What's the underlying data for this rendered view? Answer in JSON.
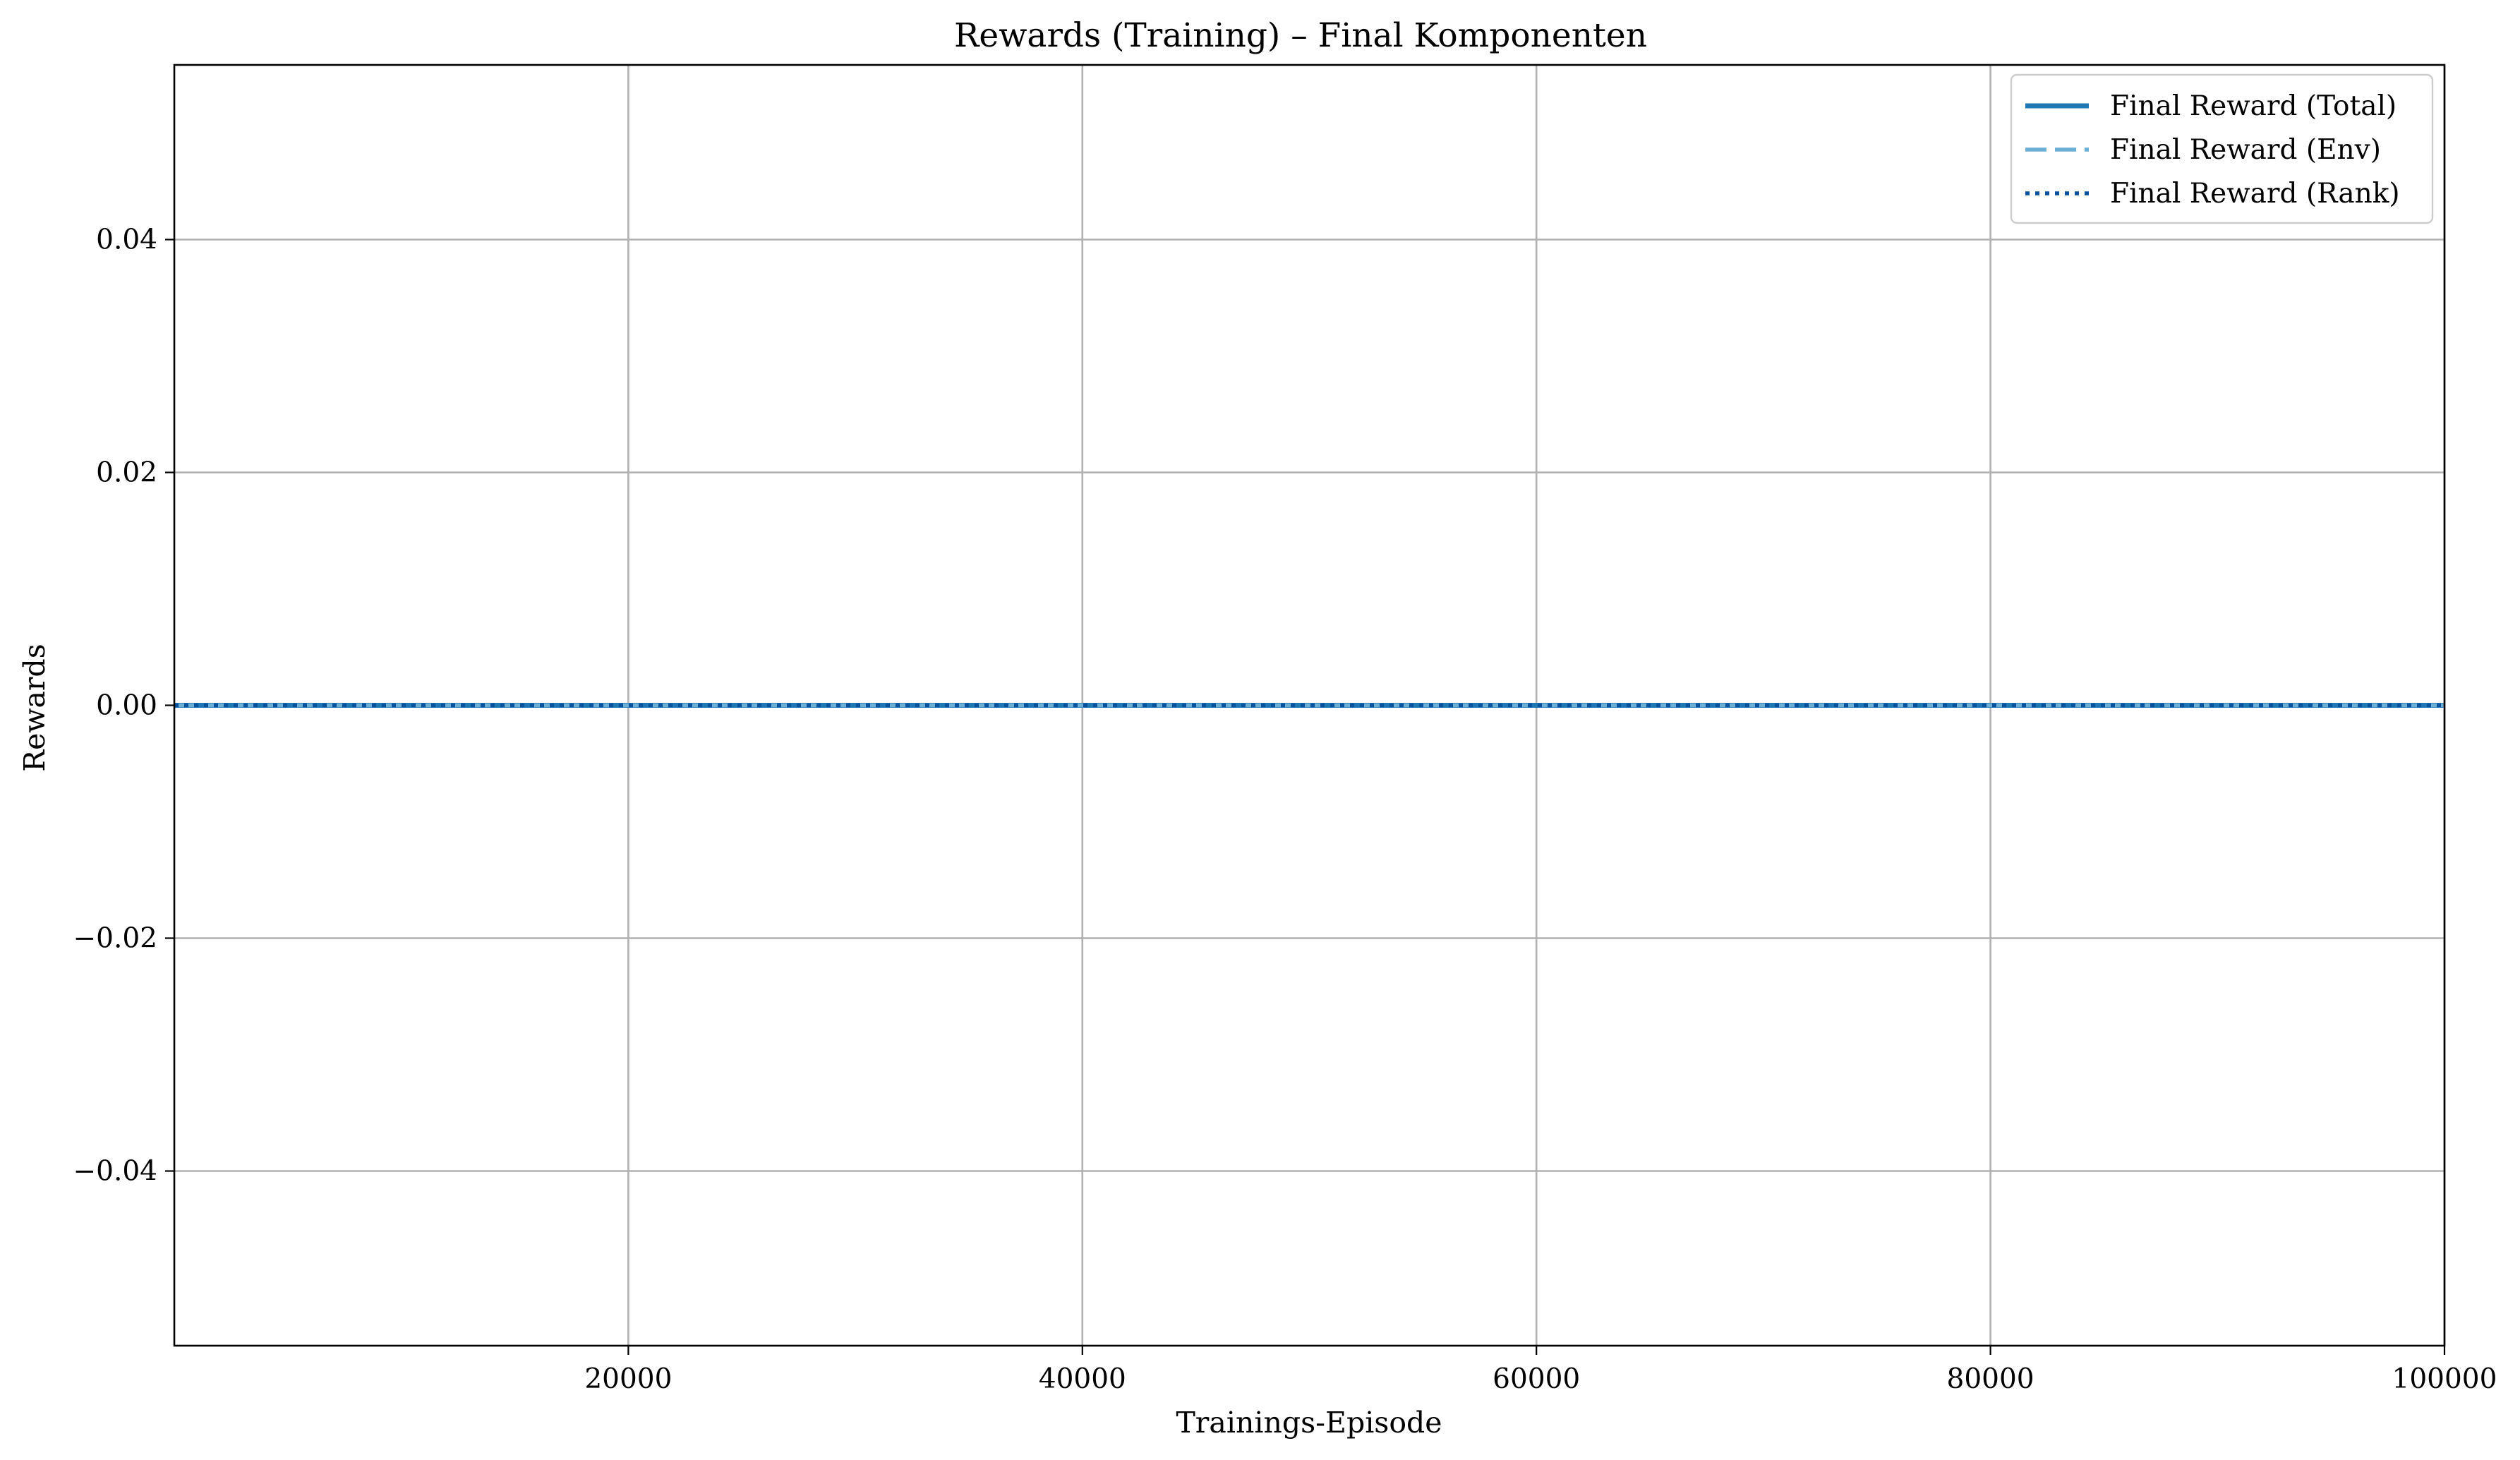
{
  "chart_data": {
    "type": "line",
    "title": "Rewards (Training) – Final Komponenten",
    "xlabel": "Trainings-Episode",
    "ylabel": "Rewards",
    "xlim": [
      0,
      100000
    ],
    "ylim": [
      -0.055,
      0.055
    ],
    "xticks": [
      20000,
      40000,
      60000,
      80000,
      100000
    ],
    "xtick_labels": [
      "20000",
      "40000",
      "60000",
      "80000",
      "100000"
    ],
    "yticks": [
      0.04,
      0.02,
      0.0,
      -0.02,
      -0.04
    ],
    "ytick_labels": [
      "0.04",
      "0.02",
      "0.00",
      "−0.02",
      "−0.04"
    ],
    "grid": true,
    "legend_position": "top-right",
    "series": [
      {
        "name": "Final Reward (Total)",
        "style": "solid",
        "color": "#1f77b4",
        "x": [
          0,
          100000
        ],
        "y": [
          0,
          0
        ]
      },
      {
        "name": "Final Reward (Env)",
        "style": "dashed",
        "color": "#6baed6",
        "x": [
          0,
          100000
        ],
        "y": [
          0,
          0
        ]
      },
      {
        "name": "Final Reward (Rank)",
        "style": "dotted",
        "color": "#08519c",
        "x": [
          0,
          100000
        ],
        "y": [
          0,
          0
        ]
      }
    ]
  }
}
